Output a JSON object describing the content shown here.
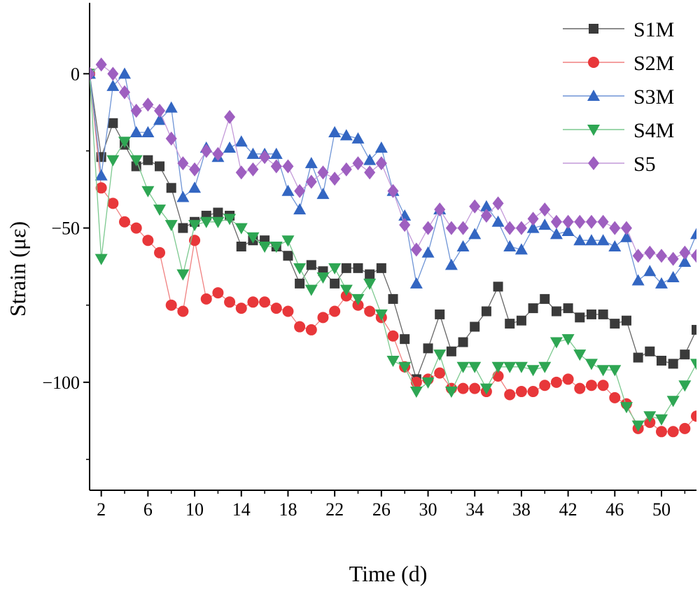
{
  "chart_data": {
    "type": "line",
    "xlabel": "Time (d)",
    "ylabel": "Strain (με)",
    "xlim": [
      1,
      53
    ],
    "ylim": [
      -135,
      23
    ],
    "xticks": [
      2,
      6,
      10,
      14,
      18,
      22,
      26,
      30,
      34,
      38,
      42,
      46,
      50
    ],
    "yticks": [
      0,
      -50,
      -100
    ],
    "legend_position": "top-right",
    "grid": false,
    "x": [
      1,
      2,
      3,
      4,
      5,
      6,
      7,
      8,
      9,
      10,
      11,
      12,
      13,
      14,
      15,
      16,
      17,
      18,
      19,
      20,
      21,
      22,
      23,
      24,
      25,
      26,
      27,
      28,
      29,
      30,
      31,
      32,
      33,
      34,
      35,
      36,
      37,
      38,
      39,
      40,
      41,
      42,
      43,
      44,
      45,
      46,
      47,
      48,
      49,
      50,
      51,
      52,
      53
    ],
    "series": [
      {
        "name": "S1M",
        "marker": "square",
        "color": "#3a3a3a",
        "line_color": "#666666",
        "values": [
          0,
          -27,
          -16,
          -23,
          -30,
          -28,
          -30,
          -37,
          -50,
          -48,
          -46,
          -45,
          -46,
          -56,
          -54,
          -54,
          -56,
          -59,
          -68,
          -62,
          -64,
          -68,
          -63,
          -63,
          -65,
          -63,
          -73,
          -86,
          -99,
          -89,
          -78,
          -90,
          -87,
          -82,
          -77,
          -69,
          -81,
          -80,
          -76,
          -73,
          -77,
          -76,
          -79,
          -78,
          -78,
          -81,
          -80,
          -92,
          -90,
          -93,
          -94,
          -91,
          -83
        ]
      },
      {
        "name": "S2M",
        "marker": "circle",
        "color": "#e8373a",
        "line_color": "#f08080",
        "values": [
          0,
          -37,
          -42,
          -48,
          -50,
          -54,
          -58,
          -75,
          -77,
          -54,
          -73,
          -71,
          -74,
          -76,
          -74,
          -74,
          -76,
          -77,
          -82,
          -83,
          -79,
          -77,
          -72,
          -75,
          -77,
          -79,
          -85,
          -95,
          -100,
          -99,
          -97,
          -102,
          -102,
          -102,
          -103,
          -98,
          -104,
          -103,
          -103,
          -101,
          -100,
          -99,
          -102,
          -101,
          -101,
          -105,
          -107,
          -115,
          -113,
          -116,
          -116,
          -115,
          -111
        ]
      },
      {
        "name": "S3M",
        "marker": "triangle-up",
        "color": "#3366c2",
        "line_color": "#6e94d6",
        "values": [
          0,
          -33,
          -4,
          0,
          -19,
          -19,
          -15,
          -11,
          -40,
          -37,
          -24,
          -27,
          -24,
          -22,
          -26,
          -26,
          -26,
          -38,
          -44,
          -29,
          -39,
          -19,
          -20,
          -21,
          -28,
          -24,
          -38,
          -46,
          -68,
          -58,
          -44,
          -62,
          -56,
          -52,
          -43,
          -48,
          -56,
          -57,
          -50,
          -49,
          -52,
          -51,
          -54,
          -54,
          -54,
          -56,
          -53,
          -67,
          -64,
          -68,
          -66,
          -61,
          -52
        ]
      },
      {
        "name": "S4M",
        "marker": "triangle-down",
        "color": "#2ea653",
        "line_color": "#7cc98f",
        "values": [
          0,
          -60,
          -28,
          -22,
          -28,
          -38,
          -44,
          -49,
          -65,
          -49,
          -48,
          -48,
          -47,
          -50,
          -53,
          -56,
          -56,
          -54,
          -63,
          -70,
          -66,
          -63,
          -70,
          -73,
          -68,
          -78,
          -93,
          -95,
          -103,
          -100,
          -91,
          -103,
          -95,
          -95,
          -102,
          -95,
          -95,
          -95,
          -96,
          -95,
          -87,
          -86,
          -91,
          -94,
          -96,
          -96,
          -108,
          -114,
          -111,
          -112,
          -106,
          -101,
          -94
        ]
      },
      {
        "name": "S5",
        "marker": "diamond",
        "color": "#9e5fc0",
        "line_color": "#c49ad9",
        "values": [
          0,
          3,
          0,
          -6,
          -12,
          -10,
          -12,
          -21,
          -29,
          -31,
          -25,
          -26,
          -14,
          -32,
          -31,
          -27,
          -30,
          -30,
          -38,
          -35,
          -32,
          -34,
          -31,
          -29,
          -32,
          -29,
          -38,
          -49,
          -57,
          -50,
          -44,
          -50,
          -50,
          -43,
          -46,
          -42,
          -50,
          -50,
          -47,
          -44,
          -48,
          -48,
          -48,
          -48,
          -48,
          -50,
          -50,
          -59,
          -58,
          -59,
          -60,
          -58,
          -59
        ]
      }
    ]
  }
}
